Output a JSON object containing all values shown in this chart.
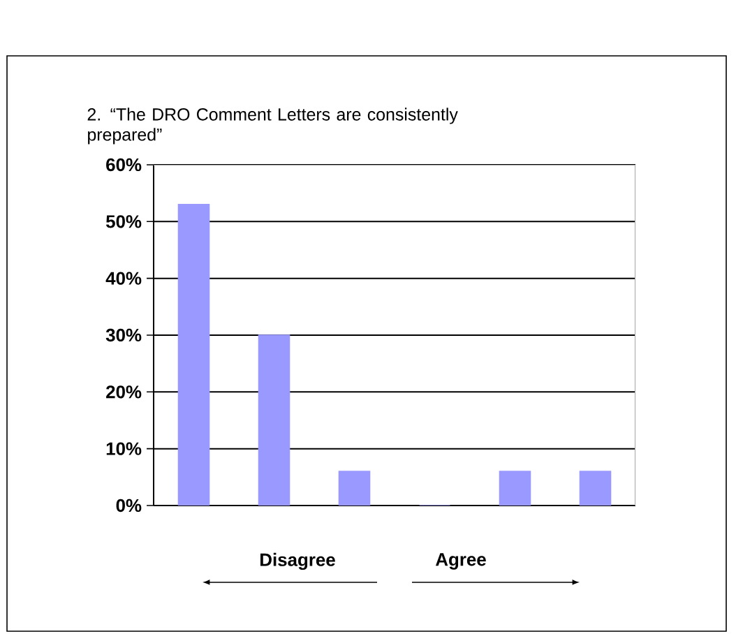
{
  "chart_data": {
    "type": "bar",
    "title": "2. “The DRO Comment Letters are consistently prepared”",
    "categories": [
      null,
      null,
      null,
      null,
      null,
      null
    ],
    "values": [
      53,
      30,
      6,
      0,
      6,
      6
    ],
    "color": "#9999ff",
    "ylim": [
      0,
      60
    ],
    "yticks": [
      {
        "value": 0,
        "label": "0%"
      },
      {
        "value": 10,
        "label": "10%"
      },
      {
        "value": 20,
        "label": "20%"
      },
      {
        "value": 30,
        "label": "30%"
      },
      {
        "value": 40,
        "label": "40%"
      },
      {
        "value": 50,
        "label": "50%"
      },
      {
        "value": 60,
        "label": "60%"
      }
    ],
    "grid": "y",
    "tick_labels": "y",
    "annotations": [
      "Disagree",
      "Agree"
    ]
  }
}
